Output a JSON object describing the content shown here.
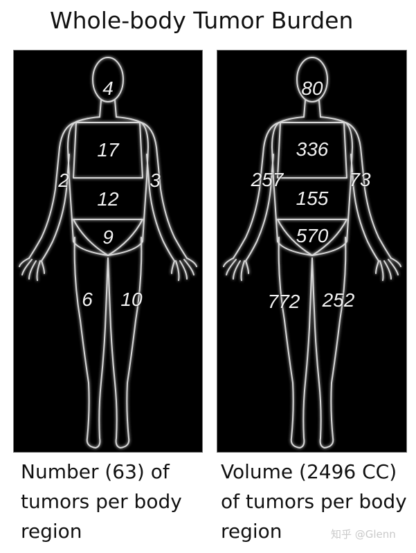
{
  "title": "Whole-body Tumor Burden",
  "left_panel": {
    "caption": "Number (63) of tumors per body region",
    "head": "4",
    "chest": "17",
    "right_arm": "2",
    "left_arm": "3",
    "abdomen": "12",
    "pelvis": "9",
    "right_leg": "6",
    "left_leg": "10"
  },
  "right_panel": {
    "caption": "Volume  (2496 CC) of tumors per body region",
    "head": "80",
    "chest": "336",
    "right_arm": "257",
    "left_arm": "73",
    "abdomen": "155",
    "pelvis": "570",
    "right_leg": "772",
    "left_leg": "252"
  },
  "watermark": "知乎 @Glenn",
  "colors": {
    "panel_bg": "#000000",
    "outline": "#d9d9d9",
    "text": "#f2f2f2"
  }
}
